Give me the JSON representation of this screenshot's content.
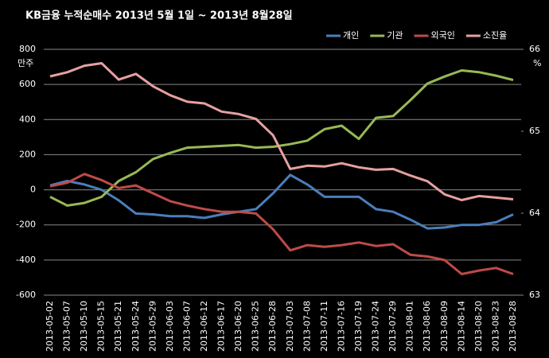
{
  "chart_data": {
    "type": "line",
    "title": "KB금융  누적순매수  2013년 5월 1일 ~ 2013년 8월28일",
    "y_label": "만주",
    "y2_label": "%",
    "categories": [
      "2013-05-02",
      "2013-05-07",
      "2013-05-10",
      "2013-05-15",
      "2013-05-21",
      "2013-05-24",
      "2013-05-29",
      "2013-06-03",
      "2013-06-07",
      "2013-06-12",
      "2013-06-17",
      "2013-06-20",
      "2013-06-25",
      "2013-06-28",
      "2013-07-03",
      "2013-07-08",
      "2013-07-11",
      "2013-07-16",
      "2013-07-19",
      "2013-07-24",
      "2013-07-29",
      "2013-08-01",
      "2013-08-06",
      "2013-08-09",
      "2013-08-14",
      "2013-08-20",
      "2013-08-23",
      "2013-08-28"
    ],
    "series": [
      {
        "name": "개인",
        "color": "#4a7ebb",
        "values": [
          25,
          50,
          30,
          0,
          -60,
          -135,
          -140,
          -150,
          -150,
          -160,
          -140,
          -125,
          -110,
          -20,
          85,
          30,
          -40,
          -40,
          -40,
          -110,
          -125,
          -170,
          -220,
          -215,
          -200,
          -200,
          -185,
          -140
        ]
      },
      {
        "name": "기관",
        "color": "#98b954",
        "values": [
          -40,
          -90,
          -75,
          -40,
          50,
          100,
          175,
          210,
          240,
          245,
          250,
          255,
          240,
          245,
          260,
          280,
          345,
          365,
          290,
          410,
          420,
          510,
          605,
          645,
          680,
          670,
          650,
          625
        ]
      },
      {
        "name": "외국인",
        "color": "#be4b48",
        "values": [
          20,
          40,
          90,
          55,
          10,
          25,
          -20,
          -65,
          -90,
          -110,
          -125,
          -125,
          -135,
          -225,
          -345,
          -315,
          -325,
          -315,
          -300,
          -320,
          -310,
          -370,
          -380,
          -400,
          -480,
          -460,
          -445,
          -480
        ]
      },
      {
        "name": "소진율",
        "color": "#e6a0a0",
        "axis": "y2",
        "values": [
          65.67,
          65.72,
          65.8,
          65.83,
          65.63,
          65.7,
          65.55,
          65.44,
          65.36,
          65.34,
          65.24,
          65.21,
          65.15,
          64.95,
          64.54,
          64.58,
          64.57,
          64.61,
          64.56,
          64.53,
          64.54,
          64.46,
          64.39,
          64.23,
          64.16,
          64.21,
          64.19,
          64.17
        ]
      }
    ],
    "ylim": [
      -600,
      800
    ],
    "yticks": [
      -600,
      -400,
      -200,
      0,
      200,
      400,
      600,
      800
    ],
    "y2lim": [
      63,
      66
    ],
    "y2ticks": [
      63,
      64,
      65,
      66
    ],
    "grid": true,
    "legend": "top-right"
  }
}
